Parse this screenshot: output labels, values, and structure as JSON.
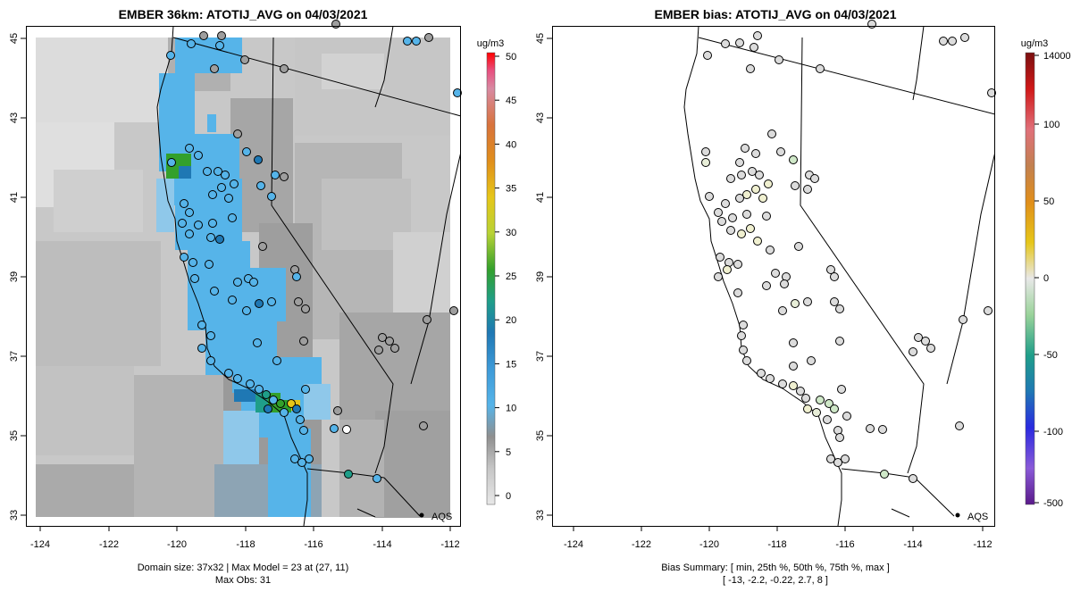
{
  "left_map": {
    "title": "EMBER 36km: ATOTIJ_AVG on 04/03/2021",
    "footer_line1": "Domain size: 37x32 | Max Model = 23 at (27, 11)",
    "footer_line2": "Max Obs: 31",
    "legend_unit": "ug/m3",
    "legend_ticks": [
      "0",
      "5",
      "10",
      "15",
      "20",
      "25",
      "30",
      "35",
      "40",
      "45",
      "50"
    ],
    "point_label": "AQS"
  },
  "right_map": {
    "title": "EMBER bias: ATOTIJ_AVG on 04/03/2021",
    "footer_line1": "Bias Summary: [ min, 25th %, 50th %, 75th %, max ]",
    "footer_line2": "[ -13,   -2.2,   -0.22,   2.7,   8 ]",
    "legend_unit": "ug/m3",
    "legend_ticks": [
      "14000",
      "100",
      "50",
      "0",
      "-50",
      "-100",
      "-500"
    ],
    "point_label": "AQS"
  },
  "axes": {
    "x_ticks": [
      "-124",
      "-122",
      "-120",
      "-118",
      "-116",
      "-114",
      "-112"
    ],
    "y_ticks": [
      "33",
      "35",
      "37",
      "39",
      "41",
      "43",
      "45"
    ]
  },
  "colors": {
    "frame": "#000000",
    "gray_light": "#dcdcdc",
    "gray_mid": "#c4c4c4",
    "gray_dark": "#a9a9a9",
    "blue": "#56b4e9",
    "blue_dark": "#1f78b4",
    "green": "#33a02c",
    "yellow": "#e6c619"
  }
}
